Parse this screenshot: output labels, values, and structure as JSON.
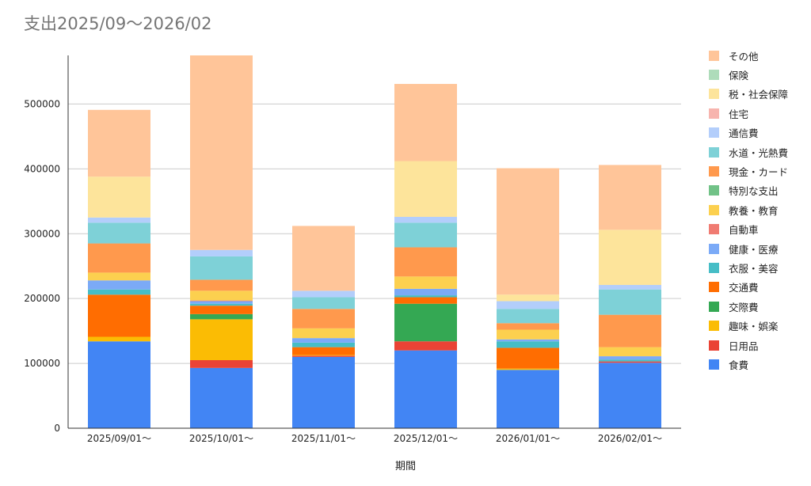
{
  "chart_data": {
    "type": "bar",
    "stacked": true,
    "title": "支出2025/09〜2026/02",
    "xlabel": "期間",
    "ylabel": "",
    "ylim": [
      0,
      575000
    ],
    "yticks": [
      0,
      100000,
      200000,
      300000,
      400000,
      500000
    ],
    "ytick_labels": [
      "0",
      "100000",
      "200000",
      "300000",
      "400000",
      "500000"
    ],
    "grid": true,
    "legend_position": "right",
    "categories": [
      "2025/09/01〜",
      "2025/10/01〜",
      "2025/11/01〜",
      "2025/12/01〜",
      "2026/01/01〜",
      "2026/02/01〜"
    ],
    "series": [
      {
        "name": "食費",
        "color": "#4285f4",
        "values": [
          134000,
          93000,
          110000,
          120000,
          90000,
          101000
        ]
      },
      {
        "name": "日用品",
        "color": "#ea4335",
        "values": [
          0,
          12000,
          2000,
          14000,
          0,
          2000
        ]
      },
      {
        "name": "趣味・娯楽",
        "color": "#fbbc04",
        "values": [
          7000,
          63000,
          1000,
          0,
          2000,
          0
        ]
      },
      {
        "name": "交際費",
        "color": "#34a853",
        "values": [
          0,
          8000,
          0,
          58000,
          0,
          0
        ]
      },
      {
        "name": "交通費",
        "color": "#ff6d01",
        "values": [
          65000,
          13000,
          12000,
          10000,
          32000,
          0
        ]
      },
      {
        "name": "衣服・美容",
        "color": "#46bdc6",
        "values": [
          8000,
          3000,
          7000,
          3000,
          10000,
          3000
        ]
      },
      {
        "name": "健康・医療",
        "color": "#7baaf7",
        "values": [
          14000,
          4000,
          7000,
          10000,
          3000,
          5000
        ]
      },
      {
        "name": "自動車",
        "color": "#f07b72",
        "values": [
          0,
          1000,
          0,
          0,
          0,
          0
        ]
      },
      {
        "name": "教養・教育",
        "color": "#fcd04f",
        "values": [
          12000,
          15000,
          15000,
          19000,
          15000,
          14000
        ]
      },
      {
        "name": "特別な支出",
        "color": "#71c287",
        "values": [
          0,
          0,
          0,
          0,
          0,
          0
        ]
      },
      {
        "name": "現金・カード",
        "color": "#ff994d",
        "values": [
          45000,
          17000,
          30000,
          45000,
          10000,
          50000
        ]
      },
      {
        "name": "水道・光熱費",
        "color": "#7ed1d7",
        "values": [
          32000,
          36000,
          18000,
          38000,
          22000,
          39000
        ]
      },
      {
        "name": "通信費",
        "color": "#b3cefb",
        "values": [
          8000,
          10000,
          10000,
          9000,
          12000,
          7000
        ]
      },
      {
        "name": "住宅",
        "color": "#f7b4ae",
        "values": [
          0,
          0,
          0,
          0,
          0,
          0
        ]
      },
      {
        "name": "税・社会保障",
        "color": "#fde49b",
        "values": [
          63000,
          0,
          0,
          86000,
          10000,
          85000
        ]
      },
      {
        "name": "保険",
        "color": "#aedcba",
        "values": [
          0,
          0,
          0,
          0,
          0,
          0
        ]
      },
      {
        "name": "その他",
        "color": "#ffc599",
        "values": [
          103000,
          300000,
          100000,
          119000,
          195000,
          100000
        ]
      }
    ]
  }
}
